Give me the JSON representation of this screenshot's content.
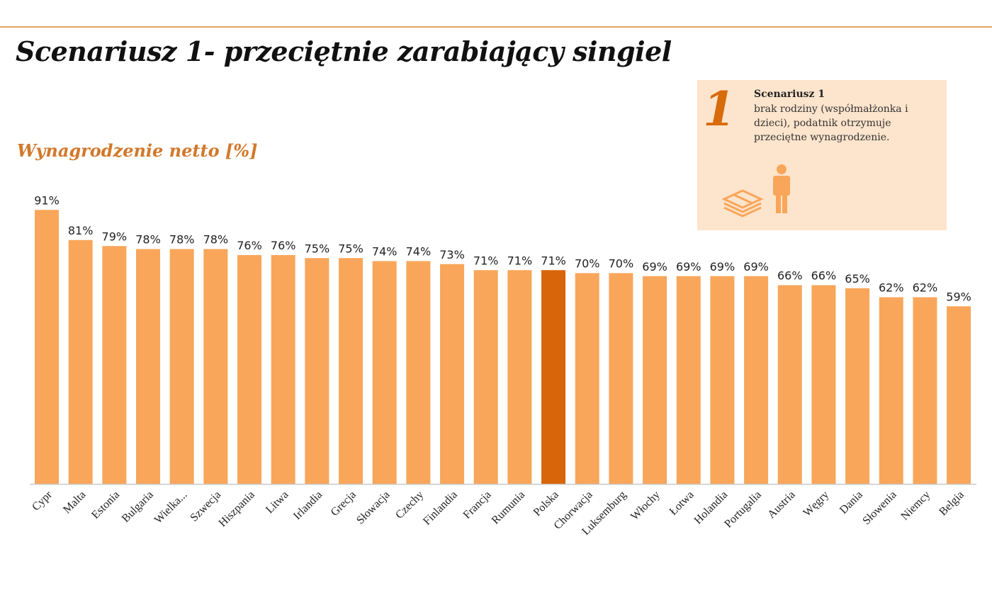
{
  "title": "Scenariusz 1-  przeciętnie zarabiający singiel",
  "info_box": {
    "number": "1",
    "heading": "Scenariusz 1",
    "description": "brak rodziny (współmałżonka i dzieci), podatnik otrzymuje przeciętne wynagrodzenie.",
    "icons": [
      "money-stack-icon",
      "person-icon"
    ]
  },
  "chart_data": {
    "type": "bar",
    "title": "Wynagrodzenie netto [%]",
    "categories": [
      "Cypr",
      "Malta",
      "Estonia",
      "Bulgaria",
      "Wielka...",
      "Szwecja",
      "Hiszpania",
      "Litwa",
      "Irlandia",
      "Grecja",
      "Słowacja",
      "Czechy",
      "Finlandia",
      "Francja",
      "Rumunia",
      "Polska",
      "Chorwacja",
      "Luksemburg",
      "Włochy",
      "Łotwa",
      "Holandia",
      "Portugalia",
      "Austria",
      "Węgry",
      "Dania",
      "Słowenia",
      "Niemcy",
      "Belgia"
    ],
    "values": [
      91,
      81,
      79,
      78,
      78,
      78,
      76,
      76,
      75,
      75,
      74,
      74,
      73,
      71,
      71,
      71,
      70,
      70,
      69,
      69,
      69,
      69,
      66,
      66,
      65,
      62,
      62,
      59
    ],
    "labels": [
      "91%",
      "81%",
      "79%",
      "78%",
      "78%",
      "78%",
      "76%",
      "76%",
      "75%",
      "75%",
      "74%",
      "74%",
      "73%",
      "71%",
      "71%",
      "71%",
      "70%",
      "70%",
      "69%",
      "69%",
      "69%",
      "69%",
      "66%",
      "66%",
      "65%",
      "62%",
      "62%",
      "59%"
    ],
    "highlight": "Polska",
    "ylim": [
      0,
      91
    ],
    "grid": false,
    "colors": {
      "bar": "#f9a65a",
      "highlight": "#d9650a",
      "axis": "#c8c8c8"
    }
  }
}
